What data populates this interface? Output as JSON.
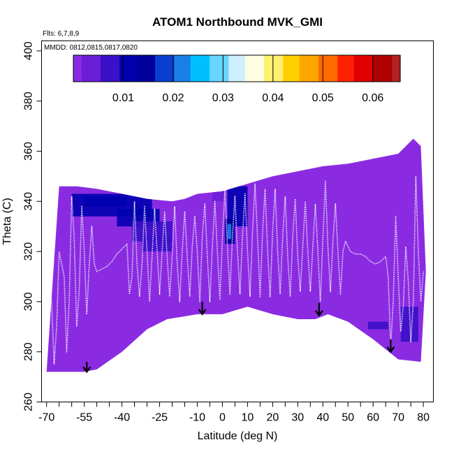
{
  "chart_data": {
    "type": "heatmap",
    "title": "ATOM1 Northbound MVK_GMI",
    "flights_label": "Flts: 6,7,8,9",
    "dates_label": "MMDD: 0812,0815,0817,0820",
    "xlabel": "Latitude (deg N)",
    "ylabel": "Theta (C)",
    "xlim": [
      -72,
      84
    ],
    "ylim": [
      260,
      404
    ],
    "x_ticks": [
      -70,
      -55,
      -40,
      -25,
      -10,
      0,
      10,
      20,
      30,
      40,
      50,
      60,
      70,
      80
    ],
    "x_tick_labels": [
      "-70",
      "-55",
      "-40",
      "-25",
      "-10",
      "0",
      "10",
      "20",
      "30",
      "40",
      "50",
      "60",
      "70",
      "80"
    ],
    "x_minor_ticks": [
      -65,
      -60,
      -50,
      -45,
      -35,
      -30,
      -20,
      -15,
      -5,
      5,
      15,
      25,
      35,
      45,
      55,
      65,
      75
    ],
    "y_ticks": [
      260,
      280,
      300,
      320,
      340,
      360,
      380,
      400
    ],
    "y_tick_labels": [
      "260",
      "280",
      "300",
      "320",
      "340",
      "360",
      "380",
      "400"
    ],
    "colorbar": {
      "min": 0.0,
      "max": 0.0655,
      "ticks": [
        0.01,
        0.02,
        0.03,
        0.04,
        0.05,
        0.06
      ],
      "tick_labels": [
        "0.01",
        "0.02",
        "0.03",
        "0.04",
        "0.05",
        "0.06"
      ],
      "colors": [
        "#8a2be2",
        "#6a1ed6",
        "#3a10c8",
        "#0000b0",
        "#00009a",
        "#0a3fd0",
        "#1a7fe8",
        "#00bfff",
        "#66d6ff",
        "#cfeeff",
        "#fffde0",
        "#fff070",
        "#ffd000",
        "#ffa500",
        "#ff6a00",
        "#ff2000",
        "#e00000",
        "#b00000",
        "#b22222"
      ]
    },
    "background_value": 0.0,
    "domain_top": [
      [
        -65,
        346
      ],
      [
        -58,
        346
      ],
      [
        -50,
        345
      ],
      [
        -40,
        343
      ],
      [
        -30,
        341
      ],
      [
        -20,
        340
      ],
      [
        -15,
        341
      ],
      [
        -10,
        343
      ],
      [
        0,
        344
      ],
      [
        10,
        347
      ],
      [
        20,
        350
      ],
      [
        30,
        352
      ],
      [
        40,
        354
      ],
      [
        50,
        355
      ],
      [
        60,
        357
      ],
      [
        70,
        359
      ],
      [
        76,
        365
      ],
      [
        79,
        362
      ],
      [
        81,
        312
      ]
    ],
    "domain_bottom": [
      [
        -70,
        272
      ],
      [
        -55,
        272
      ],
      [
        -50,
        273
      ],
      [
        -40,
        280
      ],
      [
        -30,
        289
      ],
      [
        -22,
        293
      ],
      [
        -10,
        295
      ],
      [
        0,
        295
      ],
      [
        10,
        298
      ],
      [
        20,
        295
      ],
      [
        30,
        293
      ],
      [
        37,
        293
      ],
      [
        42,
        295
      ],
      [
        50,
        292
      ],
      [
        60,
        285
      ],
      [
        70,
        277
      ],
      [
        79,
        276
      ]
    ],
    "enhancements": [
      {
        "lat_min": -60,
        "lat_max": -28,
        "theta_min": 334,
        "theta_max": 343,
        "value": 0.01
      },
      {
        "lat_min": -55,
        "lat_max": -38,
        "theta_min": 338,
        "theta_max": 342,
        "value": 0.012
      },
      {
        "lat_min": -42,
        "lat_max": -25,
        "theta_min": 330,
        "theta_max": 337,
        "value": 0.011
      },
      {
        "lat_min": -36,
        "lat_max": -20,
        "theta_min": 324,
        "theta_max": 332,
        "value": 0.009
      },
      {
        "lat_min": -32,
        "lat_max": -20,
        "theta_min": 320,
        "theta_max": 326,
        "value": 0.007
      },
      {
        "lat_min": 2,
        "lat_max": 10,
        "theta_min": 330,
        "theta_max": 346,
        "value": 0.011
      },
      {
        "lat_min": 1,
        "lat_max": 5,
        "theta_min": 323,
        "theta_max": 333,
        "value": 0.016
      },
      {
        "lat_min": 2,
        "lat_max": 3.5,
        "theta_min": 325,
        "theta_max": 331,
        "value": 0.022
      },
      {
        "lat_min": -4,
        "lat_max": 1,
        "theta_min": 340,
        "theta_max": 346,
        "value": 0.005
      },
      {
        "lat_min": 58,
        "lat_max": 66,
        "theta_min": 289,
        "theta_max": 292,
        "value": 0.006
      },
      {
        "lat_min": 71,
        "lat_max": 78,
        "theta_min": 284,
        "theta_max": 298,
        "value": 0.008
      }
    ],
    "flight_traces": [
      [
        [
          -69,
          313
        ],
        [
          -68,
          300
        ],
        [
          -67,
          275
        ],
        [
          -66,
          290
        ],
        [
          -65,
          320
        ],
        [
          -63,
          310
        ],
        [
          -62,
          280
        ],
        [
          -61,
          300
        ],
        [
          -60,
          342
        ],
        [
          -59,
          325
        ],
        [
          -58,
          290
        ],
        [
          -57,
          305
        ],
        [
          -56,
          338
        ],
        [
          -55,
          320
        ],
        [
          -54,
          295
        ],
        [
          -53,
          315
        ],
        [
          -52,
          330
        ],
        [
          -51,
          315
        ],
        [
          -50,
          312
        ],
        [
          -48,
          313
        ],
        [
          -46,
          314
        ],
        [
          -44,
          316
        ],
        [
          -42,
          319
        ],
        [
          -40,
          321
        ],
        [
          -38,
          323
        ],
        [
          -37,
          303
        ],
        [
          -36,
          310
        ],
        [
          -35,
          340
        ],
        [
          -34,
          315
        ],
        [
          -33,
          302
        ],
        [
          -32,
          315
        ],
        [
          -31,
          338
        ],
        [
          -30,
          320
        ],
        [
          -29,
          300
        ],
        [
          -28,
          318
        ],
        [
          -27,
          337
        ],
        [
          -26,
          320
        ],
        [
          -25,
          303
        ],
        [
          -24,
          320
        ],
        [
          -23,
          336
        ],
        [
          -22,
          318
        ],
        [
          -21,
          302
        ],
        [
          -20,
          318
        ],
        [
          -19,
          338
        ],
        [
          -18,
          315
        ],
        [
          -17,
          300
        ],
        [
          -16,
          320
        ],
        [
          -15,
          336
        ],
        [
          -14,
          318
        ],
        [
          -13,
          302
        ],
        [
          -12,
          322
        ],
        [
          -11,
          334
        ],
        [
          -10,
          320
        ],
        [
          -9,
          300
        ],
        [
          -8,
          326
        ],
        [
          -7,
          339
        ],
        [
          -6,
          318
        ],
        [
          -5,
          300
        ],
        [
          -4,
          322
        ],
        [
          -3,
          340
        ],
        [
          -2,
          320
        ],
        [
          -1,
          301
        ],
        [
          0,
          325
        ],
        [
          1,
          345
        ],
        [
          2,
          322
        ],
        [
          3,
          303
        ],
        [
          4,
          326
        ],
        [
          5,
          342
        ],
        [
          6,
          320
        ],
        [
          7,
          303
        ],
        [
          8,
          326
        ],
        [
          9,
          343
        ],
        [
          10,
          320
        ],
        [
          11,
          302
        ],
        [
          12,
          328
        ],
        [
          13,
          347
        ]
      ],
      [
        [
          13,
          347
        ],
        [
          14,
          325
        ],
        [
          15,
          302
        ],
        [
          16,
          328
        ],
        [
          17,
          345
        ],
        [
          18,
          320
        ],
        [
          19,
          302
        ],
        [
          20,
          328
        ],
        [
          21,
          345
        ],
        [
          22,
          320
        ],
        [
          23,
          303
        ],
        [
          24,
          326
        ],
        [
          25,
          342
        ],
        [
          26,
          318
        ],
        [
          27,
          302
        ],
        [
          28,
          326
        ],
        [
          29,
          341
        ],
        [
          30,
          318
        ],
        [
          31,
          304
        ],
        [
          32,
          322
        ],
        [
          33,
          340
        ],
        [
          34,
          320
        ],
        [
          35,
          304
        ],
        [
          36,
          322
        ],
        [
          37,
          339
        ],
        [
          38,
          320
        ],
        [
          39,
          300
        ],
        [
          40,
          325
        ],
        [
          41,
          348
        ],
        [
          42,
          322
        ],
        [
          43,
          304
        ],
        [
          44,
          324
        ],
        [
          45,
          339
        ],
        [
          46,
          320
        ],
        [
          47,
          303
        ],
        [
          48,
          320
        ],
        [
          49,
          324
        ],
        [
          51,
          320
        ],
        [
          53,
          319
        ],
        [
          55,
          319
        ],
        [
          57,
          318
        ],
        [
          59,
          316
        ],
        [
          61,
          315
        ],
        [
          63,
          316
        ],
        [
          65,
          318
        ],
        [
          66,
          310
        ],
        [
          67,
          282
        ],
        [
          68,
          300
        ],
        [
          69,
          334
        ],
        [
          70,
          310
        ],
        [
          71,
          288
        ],
        [
          72,
          298
        ],
        [
          73,
          322
        ],
        [
          74,
          308
        ],
        [
          75,
          284
        ],
        [
          76,
          300
        ],
        [
          77,
          350
        ],
        [
          78,
          320
        ],
        [
          79,
          300
        ],
        [
          80,
          312
        ]
      ]
    ],
    "markers": [
      {
        "lat": -54,
        "theta_top": 276,
        "theta_tip": 272
      },
      {
        "lat": -8,
        "theta_top": 300,
        "theta_tip": 295
      },
      {
        "lat": 38.5,
        "theta_top": 299.5,
        "theta_tip": 294.5
      },
      {
        "lat": 67,
        "theta_top": 285,
        "theta_tip": 280
      }
    ]
  }
}
